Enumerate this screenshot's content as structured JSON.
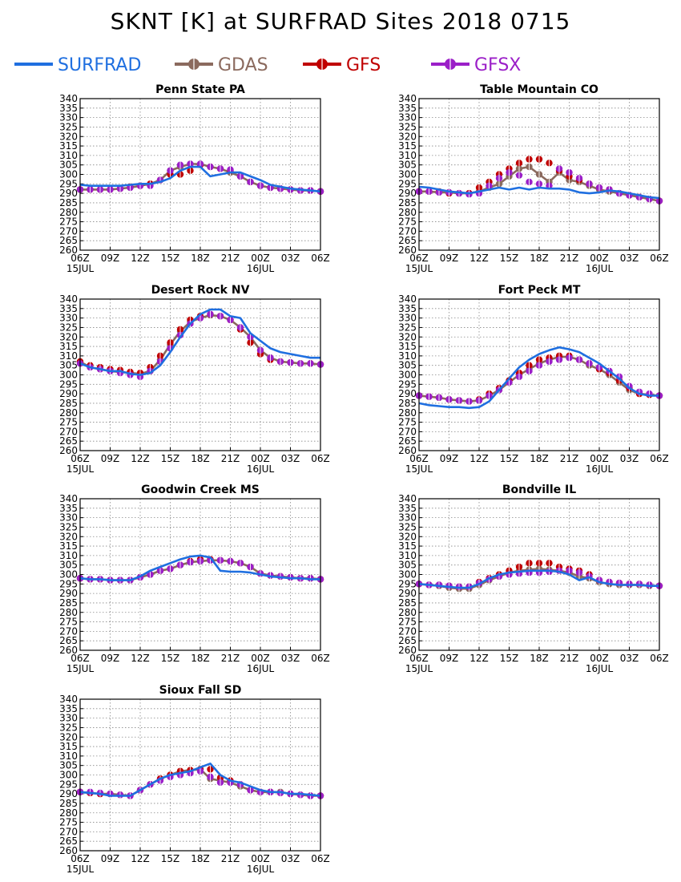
{
  "figure": {
    "title": "SKNT [K] at SURFRAD Sites     2018 0715"
  },
  "legend": [
    {
      "name": "SURFRAD",
      "color": "#1f6fe0",
      "marker": false
    },
    {
      "name": "GDAS",
      "color": "#8b6a5e",
      "marker": true
    },
    {
      "name": "GFS",
      "color": "#c00000",
      "marker": true
    },
    {
      "name": "GFSX",
      "color": "#9b1fc8",
      "marker": true
    }
  ],
  "axes": {
    "x_ticks": [
      "06Z",
      "09Z",
      "12Z",
      "15Z",
      "18Z",
      "21Z",
      "00Z",
      "03Z",
      "06Z"
    ],
    "x_date_labels": [
      {
        "at": 0,
        "text": "15JUL"
      },
      {
        "at": 6,
        "text": "16JUL"
      }
    ],
    "y_ticks": [
      "260",
      "265",
      "270",
      "275",
      "280",
      "285",
      "290",
      "295",
      "300",
      "305",
      "310",
      "315",
      "320",
      "325",
      "330",
      "335",
      "340"
    ]
  },
  "chart_data": [
    {
      "type": "line",
      "title": "Penn State PA",
      "ylim": [
        260,
        340
      ],
      "x_hours": [
        0,
        1,
        2,
        3,
        4,
        5,
        6,
        7,
        8,
        9,
        10,
        11,
        12,
        13,
        14,
        15,
        16,
        17,
        18,
        19,
        20,
        21,
        22,
        23,
        24
      ],
      "series": [
        {
          "name": "SURFRAD",
          "values": [
            294.5,
            294,
            294,
            294,
            294,
            294.5,
            295,
            295,
            296,
            298,
            302,
            304,
            304,
            299,
            300,
            301,
            301,
            299,
            297,
            294.5,
            293.5,
            292.5,
            292,
            291.5,
            291
          ]
        },
        {
          "name": "GDAS",
          "values": [
            292,
            292,
            292,
            292,
            292.5,
            293,
            294,
            295,
            297,
            302,
            304,
            305.5,
            305.5,
            304,
            303,
            301,
            299,
            296,
            294,
            293,
            292.5,
            292,
            291.5,
            291.5,
            291
          ]
        },
        {
          "name": "GFS",
          "values": [
            292,
            292,
            292,
            292,
            292.5,
            293.5,
            294,
            295,
            297,
            300,
            300,
            302,
            305,
            304,
            303,
            302,
            299,
            296,
            294,
            293,
            292.5,
            292,
            291.5,
            291.5,
            291
          ]
        },
        {
          "name": "GFSX",
          "values": [
            292,
            292,
            292,
            292,
            292.5,
            293,
            294,
            294,
            297,
            302,
            305,
            305.5,
            305.5,
            304,
            303,
            302.5,
            299,
            296,
            294,
            293,
            292.5,
            292,
            291.5,
            291.5,
            291
          ]
        }
      ]
    },
    {
      "type": "line",
      "title": "Table Mountain CO",
      "ylim": [
        260,
        340
      ],
      "x_hours": [
        0,
        1,
        2,
        3,
        4,
        5,
        6,
        7,
        8,
        9,
        10,
        11,
        12,
        13,
        14,
        15,
        16,
        17,
        18,
        19,
        20,
        21,
        22,
        23,
        24
      ],
      "series": [
        {
          "name": "SURFRAD",
          "values": [
            293.5,
            293,
            292,
            291,
            290.5,
            290,
            291,
            292,
            293,
            292,
            293,
            292,
            293,
            292.5,
            292.5,
            292,
            290.5,
            290,
            290.5,
            291.5,
            291,
            290,
            289,
            288,
            287.5
          ]
        },
        {
          "name": "GDAS",
          "values": [
            291,
            291,
            290.5,
            290.5,
            290,
            290,
            291,
            293,
            295,
            299,
            303,
            304,
            300,
            296,
            301,
            297,
            296,
            294,
            292,
            291,
            290,
            289,
            288,
            287,
            286
          ]
        },
        {
          "name": "GFS",
          "values": [
            291,
            291,
            291,
            290,
            290,
            290,
            293,
            296,
            300,
            303,
            306,
            308,
            308,
            306,
            302,
            299,
            297,
            295,
            293,
            292,
            290,
            289,
            288,
            287,
            286
          ]
        },
        {
          "name": "GFSX",
          "values": [
            291,
            291,
            290.5,
            290.5,
            290,
            289.5,
            290,
            294,
            298,
            301,
            299.5,
            296,
            295,
            294,
            303,
            301,
            298,
            295,
            293,
            292,
            290,
            289,
            288,
            287,
            286
          ]
        }
      ]
    },
    {
      "type": "line",
      "title": "Desert Rock NV",
      "ylim": [
        260,
        340
      ],
      "x_hours": [
        0,
        1,
        2,
        3,
        4,
        5,
        6,
        7,
        8,
        9,
        10,
        11,
        12,
        13,
        14,
        15,
        16,
        17,
        18,
        19,
        20,
        21,
        22,
        23,
        24
      ],
      "series": [
        {
          "name": "SURFRAD",
          "values": [
            306,
            304,
            303,
            302,
            302,
            300.5,
            300,
            301,
            305,
            312,
            320,
            327,
            332,
            334.5,
            334.5,
            331,
            330,
            322,
            318,
            314,
            312,
            311,
            310,
            309,
            309
          ]
        },
        {
          "name": "GDAS",
          "values": [
            307,
            304,
            303,
            302,
            301.5,
            301,
            300.5,
            302,
            308,
            316,
            323,
            328,
            330,
            331.5,
            331,
            329,
            325,
            320,
            313,
            309,
            307,
            306.5,
            306,
            306,
            305.5
          ]
        },
        {
          "name": "GFS",
          "values": [
            307,
            305,
            304,
            303,
            302.5,
            301.5,
            301,
            304,
            310,
            317,
            324,
            329,
            331,
            332,
            331,
            329,
            324,
            317,
            311,
            308,
            307,
            306.5,
            306,
            306,
            305.5
          ]
        },
        {
          "name": "GFSX",
          "values": [
            306,
            304,
            303,
            302,
            301,
            300,
            299,
            302,
            307,
            314,
            321,
            327,
            330,
            332,
            331,
            329,
            325,
            320,
            313,
            309,
            307,
            306.5,
            306,
            306,
            305.5
          ]
        }
      ]
    },
    {
      "type": "line",
      "title": "Fort Peck MT",
      "ylim": [
        260,
        340
      ],
      "x_hours": [
        0,
        1,
        2,
        3,
        4,
        5,
        6,
        7,
        8,
        9,
        10,
        11,
        12,
        13,
        14,
        15,
        16,
        17,
        18,
        19,
        20,
        21,
        22,
        23,
        24
      ],
      "series": [
        {
          "name": "SURFRAD",
          "values": [
            285,
            284,
            283.5,
            283,
            283,
            282.5,
            283,
            286,
            292,
            298,
            304,
            308,
            311,
            313,
            314.5,
            313.5,
            312,
            309,
            306,
            302,
            298,
            293,
            290,
            289,
            289
          ]
        },
        {
          "name": "GDAS",
          "values": [
            289,
            288.5,
            288,
            287,
            286.5,
            286,
            286.5,
            289,
            292,
            296,
            300,
            303,
            306,
            308,
            309.5,
            309.5,
            308,
            305,
            303,
            300,
            296,
            292,
            290,
            289.5,
            289
          ]
        },
        {
          "name": "GFS",
          "values": [
            289,
            288.5,
            288,
            287,
            286.5,
            286,
            287,
            290,
            293,
            297,
            301,
            305,
            308,
            309,
            310,
            310,
            308,
            306,
            303,
            301,
            297,
            293,
            290,
            289.5,
            289
          ]
        },
        {
          "name": "GFSX",
          "values": [
            289,
            288.5,
            288,
            287,
            286.5,
            286,
            286.5,
            289,
            292,
            296,
            299,
            302,
            305,
            307,
            308,
            309,
            308,
            306,
            304,
            302,
            299,
            294,
            291,
            290,
            289
          ]
        }
      ]
    },
    {
      "type": "line",
      "title": "Goodwin Creek MS",
      "ylim": [
        260,
        340
      ],
      "x_hours": [
        0,
        1,
        2,
        3,
        4,
        5,
        6,
        7,
        8,
        9,
        10,
        11,
        12,
        13,
        14,
        15,
        16,
        17,
        18,
        19,
        20,
        21,
        22,
        23,
        24
      ],
      "series": [
        {
          "name": "SURFRAD",
          "values": [
            298,
            297.5,
            297.5,
            297,
            297,
            297,
            299,
            302,
            304,
            306,
            308,
            309.5,
            310,
            309,
            302,
            301.5,
            301.5,
            301,
            300,
            299,
            298.5,
            298,
            298,
            297.5,
            297.5
          ]
        },
        {
          "name": "GDAS",
          "values": [
            298,
            297.5,
            297.5,
            297,
            297,
            297,
            298.5,
            300,
            302,
            303,
            305,
            306.5,
            307,
            307.5,
            307.5,
            307,
            306,
            304,
            300.5,
            299.5,
            299,
            298.5,
            298,
            298,
            297.5
          ]
        },
        {
          "name": "GFS",
          "values": [
            298,
            297.5,
            297.5,
            297,
            297,
            297,
            298.5,
            300,
            302,
            303,
            305,
            307,
            308,
            308,
            307.5,
            307,
            306,
            304,
            300.5,
            299.5,
            299,
            298.5,
            298,
            298,
            297.5
          ]
        },
        {
          "name": "GFSX",
          "values": [
            298,
            297.5,
            297.5,
            297,
            297,
            297,
            298.5,
            300,
            302,
            303,
            305,
            306.5,
            307,
            307.5,
            307.5,
            307,
            306,
            304,
            300.5,
            299.5,
            299,
            298.5,
            298,
            298,
            297.5
          ]
        }
      ]
    },
    {
      "type": "line",
      "title": "Bondville IL",
      "ylim": [
        260,
        340
      ],
      "x_hours": [
        0,
        1,
        2,
        3,
        4,
        5,
        6,
        7,
        8,
        9,
        10,
        11,
        12,
        13,
        14,
        15,
        16,
        17,
        18,
        19,
        20,
        21,
        22,
        23,
        24
      ],
      "series": [
        {
          "name": "SURFRAD",
          "values": [
            295,
            294.5,
            294,
            293.5,
            293,
            293,
            295,
            298,
            300,
            301,
            301.5,
            302,
            302,
            302,
            301.5,
            300,
            297,
            298.5,
            296,
            295,
            294.5,
            294.5,
            294.5,
            294,
            294
          ]
        },
        {
          "name": "GDAS",
          "values": [
            295,
            294.5,
            294,
            293,
            292.5,
            292.5,
            294.5,
            297,
            299,
            301,
            302,
            302.5,
            303,
            302.5,
            302,
            301,
            299,
            298,
            296,
            295,
            294.5,
            294.5,
            294.5,
            294,
            294
          ]
        },
        {
          "name": "GFS",
          "values": [
            295,
            294.5,
            294.5,
            294,
            293.5,
            293.5,
            296,
            298,
            300,
            302,
            304,
            306,
            306,
            306,
            304,
            303,
            302,
            300,
            297,
            296,
            295.5,
            295,
            295,
            294.5,
            294
          ]
        },
        {
          "name": "GFSX",
          "values": [
            295,
            294.5,
            294.5,
            294,
            293.5,
            293.5,
            295.5,
            297.5,
            299,
            300,
            300.5,
            301,
            301,
            301.5,
            302,
            302,
            301,
            299,
            297,
            296,
            295.5,
            295,
            295,
            294.5,
            294
          ]
        }
      ]
    },
    {
      "type": "line",
      "title": "Sioux Fall SD",
      "ylim": [
        260,
        340
      ],
      "x_hours": [
        0,
        1,
        2,
        3,
        4,
        5,
        6,
        7,
        8,
        9,
        10,
        11,
        12,
        13,
        14,
        15,
        16,
        17,
        18,
        19,
        20,
        21,
        22,
        23,
        24
      ],
      "series": [
        {
          "name": "SURFRAD",
          "values": [
            291,
            290.5,
            290,
            289,
            289,
            289,
            292,
            295,
            298,
            300,
            301,
            302,
            304,
            306,
            300,
            297,
            296,
            294,
            292,
            291,
            291,
            290,
            290,
            289.5,
            289
          ]
        },
        {
          "name": "GDAS",
          "values": [
            291,
            290.5,
            290,
            290,
            289.5,
            289,
            292,
            295,
            298,
            300,
            302,
            302.5,
            303,
            298,
            297,
            296,
            294,
            292,
            291,
            291,
            291,
            290,
            289.5,
            289,
            289
          ]
        },
        {
          "name": "GFS",
          "values": [
            291,
            290.5,
            290,
            290,
            289.5,
            289,
            292,
            295,
            298,
            300,
            302,
            302.5,
            303,
            303,
            298.5,
            297,
            295,
            292,
            291,
            291,
            290.5,
            290,
            289.5,
            289,
            289
          ]
        },
        {
          "name": "GFSX",
          "values": [
            291,
            291,
            290.5,
            290,
            289.5,
            289,
            292,
            295,
            297,
            299,
            300,
            301,
            302,
            299,
            296,
            296,
            295,
            292,
            291,
            291,
            290.5,
            290,
            289.5,
            289,
            289
          ]
        }
      ]
    }
  ]
}
